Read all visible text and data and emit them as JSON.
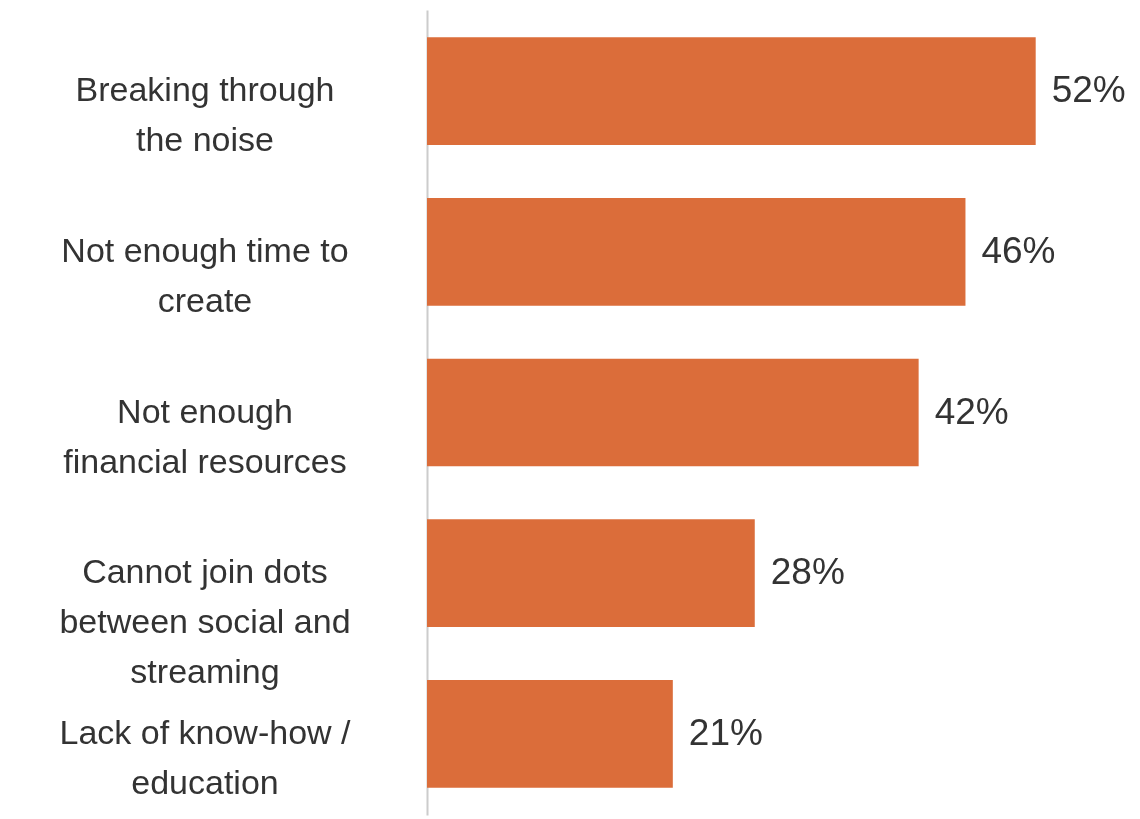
{
  "chart_data": {
    "type": "bar",
    "orientation": "horizontal",
    "categories": [
      "Breaking through the noise",
      "Not enough time to create",
      "Not enough financial resources",
      "Cannot join dots between social and streaming",
      "Lack of know-how / education"
    ],
    "values": [
      52,
      46,
      42,
      28,
      21
    ],
    "value_labels": [
      "52%",
      "46%",
      "42%",
      "28%",
      "21%"
    ],
    "color": "#db6d3a"
  }
}
